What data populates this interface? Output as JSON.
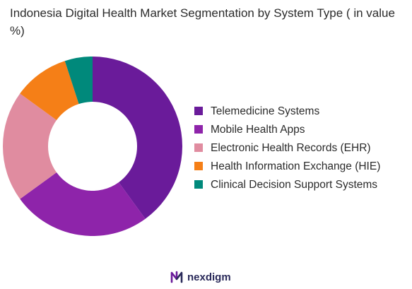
{
  "chart_data": {
    "type": "pie",
    "title": "Indonesia Digital Health Market Segmentation by System Type ( in value %)",
    "categories": [
      "Telemedicine Systems",
      "Mobile Health Apps",
      "Electronic Health Records (EHR)",
      "Health Information Exchange (HIE)",
      "Clinical Decision Support Systems"
    ],
    "values": [
      40,
      25,
      20,
      10,
      5
    ],
    "colors": [
      "#6a1b9a",
      "#8e24aa",
      "#e08ca0",
      "#f57f17",
      "#00897b"
    ],
    "donut": true,
    "legend_position": "right"
  },
  "legend": {
    "items": [
      {
        "label": "Telemedicine Systems",
        "color": "#6a1b9a"
      },
      {
        "label": "Mobile Health Apps",
        "color": "#8e24aa"
      },
      {
        "label": "Electronic Health Records (EHR)",
        "color": "#e08ca0"
      },
      {
        "label": "Health Information Exchange (HIE)",
        "color": "#f57f17"
      },
      {
        "label": "Clinical Decision Support Systems",
        "color": "#00897b"
      }
    ]
  },
  "brand": {
    "name": "nexdigm",
    "icon": "nexdigm-logo-icon",
    "color": "#2a2a5a",
    "accent": "#6a1b9a"
  }
}
